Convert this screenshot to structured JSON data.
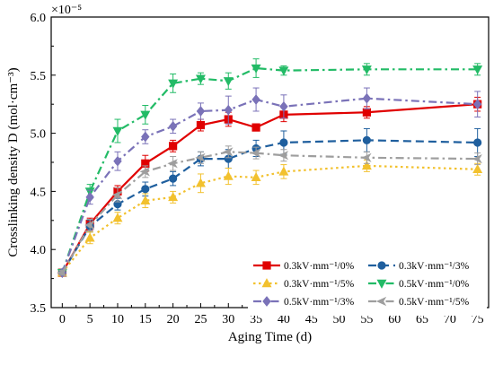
{
  "chart_data": {
    "type": "line",
    "title": "",
    "xlabel": "Aging Time (d)",
    "ylabel": "Crosslinking density D (mol·cm⁻³)",
    "y_multiplier_label": "×10⁻⁵",
    "x_ticks": [
      "0",
      "5",
      "10",
      "15",
      "20",
      "25",
      "30",
      "35",
      "40",
      "45",
      "50",
      "55",
      "60",
      "65",
      "70",
      "75"
    ],
    "y_ticks": [
      "3.5",
      "4.0",
      "4.5",
      "5.0",
      "5.5",
      "6.0"
    ],
    "xlim": [
      -2,
      77
    ],
    "ylim": [
      3.5,
      6.0
    ],
    "grid": false,
    "legend_position": "bottom-right",
    "series": [
      {
        "name": "0.3kV·mm⁻¹/0%",
        "color": "#e00000",
        "dash": "solid",
        "marker": "square",
        "x": [
          0,
          5,
          10,
          15,
          20,
          25,
          30,
          35,
          40,
          55,
          75
        ],
        "y": [
          3.8,
          4.22,
          4.5,
          4.74,
          4.89,
          5.07,
          5.12,
          5.05,
          5.16,
          5.18,
          5.25
        ],
        "err": [
          0.02,
          0.05,
          0.05,
          0.07,
          0.05,
          0.05,
          0.06,
          0.02,
          0.06,
          0.05,
          0.06
        ]
      },
      {
        "name": "0.3kV·mm⁻¹/3%",
        "color": "#1f5f9e",
        "dash": "dash",
        "marker": "circle",
        "x": [
          0,
          5,
          10,
          15,
          20,
          25,
          30,
          35,
          40,
          55,
          75
        ],
        "y": [
          3.8,
          4.2,
          4.39,
          4.52,
          4.61,
          4.78,
          4.78,
          4.87,
          4.92,
          4.94,
          4.92
        ],
        "err": [
          0.02,
          0.05,
          0.05,
          0.06,
          0.06,
          0.06,
          0.08,
          0.07,
          0.1,
          0.1,
          0.12
        ]
      },
      {
        "name": "0.3kV·mm⁻¹/5%",
        "color": "#f2c12e",
        "dash": "dot",
        "marker": "triangle-up",
        "x": [
          0,
          5,
          10,
          15,
          20,
          25,
          30,
          35,
          40,
          55,
          75
        ],
        "y": [
          3.8,
          4.1,
          4.27,
          4.42,
          4.45,
          4.57,
          4.63,
          4.62,
          4.67,
          4.72,
          4.69
        ],
        "err": [
          0.02,
          0.05,
          0.05,
          0.06,
          0.05,
          0.08,
          0.07,
          0.06,
          0.06,
          0.05,
          0.05
        ]
      },
      {
        "name": "0.5kV·mm⁻¹/0%",
        "color": "#22bb66",
        "dash": "dashdot",
        "marker": "triangle-down",
        "x": [
          0,
          5,
          10,
          15,
          20,
          25,
          30,
          35,
          40,
          55,
          75
        ],
        "y": [
          3.8,
          4.5,
          5.02,
          5.16,
          5.43,
          5.47,
          5.45,
          5.56,
          5.54,
          5.55,
          5.55
        ],
        "err": [
          0.02,
          0.06,
          0.1,
          0.08,
          0.08,
          0.05,
          0.07,
          0.08,
          0.04,
          0.05,
          0.05
        ]
      },
      {
        "name": "0.5kV·mm⁻¹/3%",
        "color": "#7a72b8",
        "dash": "dashdot",
        "marker": "diamond",
        "x": [
          0,
          5,
          10,
          15,
          20,
          25,
          30,
          35,
          40,
          55,
          75
        ],
        "y": [
          3.8,
          4.45,
          4.76,
          4.97,
          5.06,
          5.19,
          5.2,
          5.29,
          5.23,
          5.3,
          5.25
        ],
        "err": [
          0.02,
          0.06,
          0.08,
          0.06,
          0.06,
          0.07,
          0.12,
          0.1,
          0.1,
          0.09,
          0.11
        ]
      },
      {
        "name": "0.5kV·mm⁻¹/5%",
        "color": "#9e9e9e",
        "dash": "dashdot",
        "marker": "arrow-left",
        "x": [
          0,
          5,
          10,
          15,
          20,
          25,
          30,
          35,
          40,
          55,
          75
        ],
        "y": [
          3.8,
          4.21,
          4.47,
          4.67,
          4.74,
          4.79,
          4.84,
          4.83,
          4.81,
          4.79,
          4.78
        ],
        "err": [
          0.02,
          0.05,
          0.06,
          0.05,
          0.06,
          0.05,
          0.05,
          0.05,
          0.05,
          0.05,
          0.05
        ]
      }
    ]
  }
}
